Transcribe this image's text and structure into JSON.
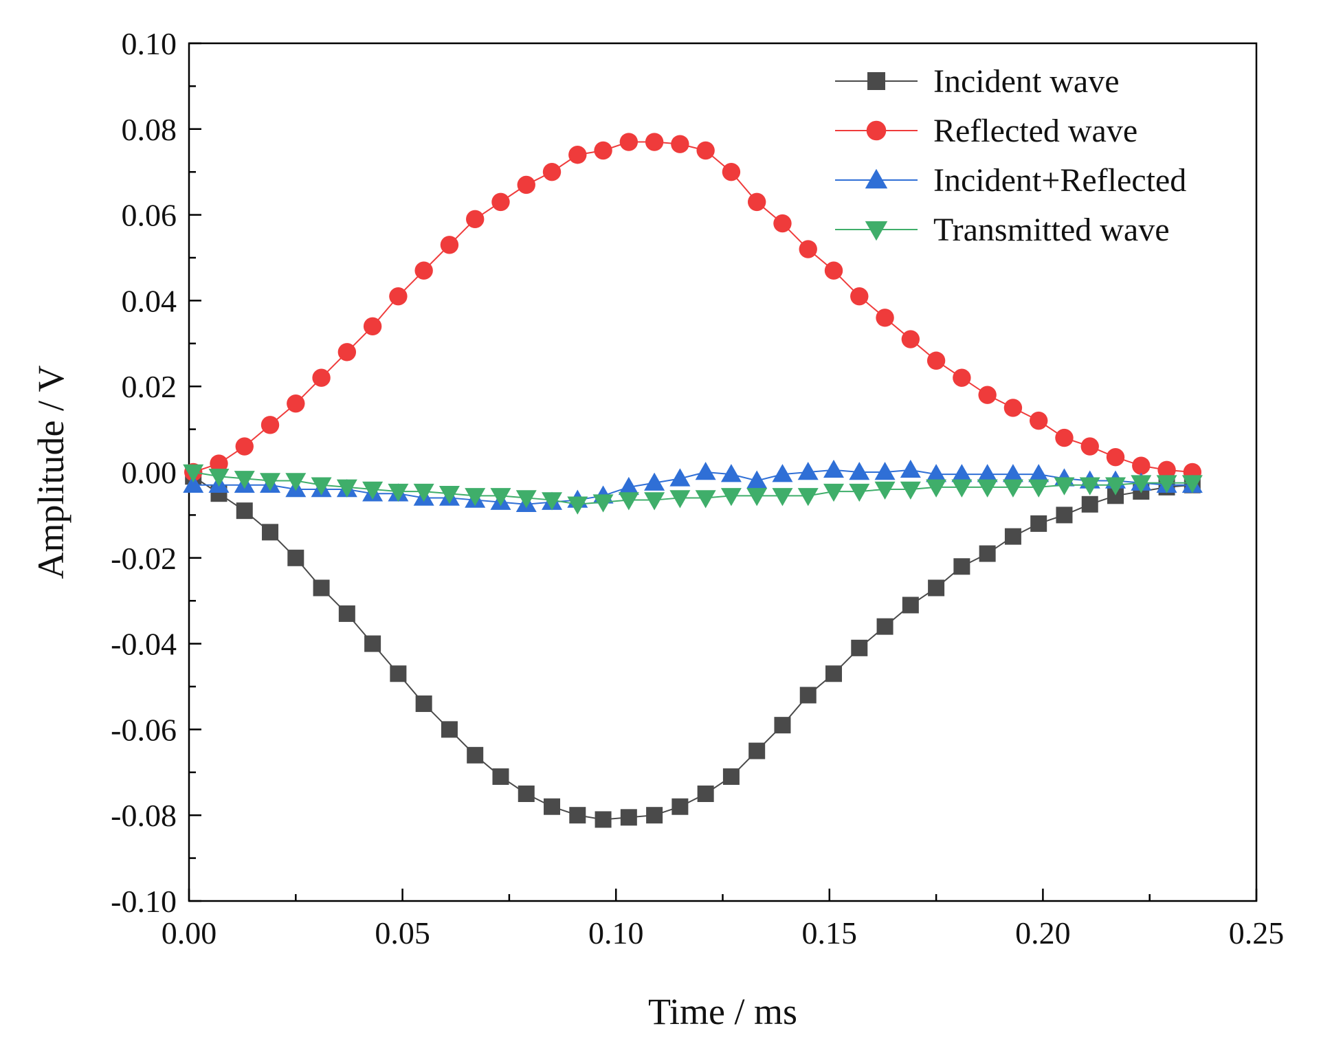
{
  "chart_data": {
    "type": "line",
    "title": "",
    "xlabel": "Time /  ms",
    "ylabel": "Amplitude / V",
    "xlim": [
      0,
      0.25
    ],
    "ylim": [
      -0.1,
      0.1
    ],
    "xticks": [
      0.0,
      0.05,
      0.1,
      0.15,
      0.2,
      0.25
    ],
    "xtick_labels": [
      "0.00",
      "0.05",
      "0.10",
      "0.15",
      "0.20",
      "0.25"
    ],
    "yticks": [
      -0.1,
      -0.08,
      -0.06,
      -0.04,
      -0.02,
      0.0,
      0.02,
      0.04,
      0.06,
      0.08,
      0.1
    ],
    "ytick_labels": [
      "-0.10",
      "-0.08",
      "-0.06",
      "-0.04",
      "-0.02",
      "0.00",
      "0.02",
      "0.04",
      "0.06",
      "0.08",
      "0.10"
    ],
    "grid": false,
    "legend_position": "top-right",
    "x": [
      0.001,
      0.007,
      0.013,
      0.019,
      0.025,
      0.031,
      0.037,
      0.043,
      0.049,
      0.055,
      0.061,
      0.067,
      0.073,
      0.079,
      0.085,
      0.091,
      0.097,
      0.103,
      0.109,
      0.115,
      0.121,
      0.127,
      0.133,
      0.139,
      0.145,
      0.151,
      0.157,
      0.163,
      0.169,
      0.175,
      0.181,
      0.187,
      0.193,
      0.199,
      0.205,
      0.211,
      0.217,
      0.223,
      0.229,
      0.235
    ],
    "series": [
      {
        "name": "Incident wave",
        "color": "#4a4a4a",
        "marker": "square",
        "values": [
          -0.001,
          -0.005,
          -0.009,
          -0.014,
          -0.02,
          -0.027,
          -0.033,
          -0.04,
          -0.047,
          -0.054,
          -0.06,
          -0.066,
          -0.071,
          -0.075,
          -0.078,
          -0.08,
          -0.081,
          -0.0805,
          -0.08,
          -0.078,
          -0.075,
          -0.071,
          -0.065,
          -0.059,
          -0.052,
          -0.047,
          -0.041,
          -0.036,
          -0.031,
          -0.027,
          -0.022,
          -0.019,
          -0.015,
          -0.012,
          -0.01,
          -0.0075,
          -0.0055,
          -0.0045,
          -0.0035,
          -0.003
        ]
      },
      {
        "name": "Reflected wave",
        "color": "#ef3b3b",
        "marker": "circle",
        "values": [
          0.0,
          0.002,
          0.006,
          0.011,
          0.016,
          0.022,
          0.028,
          0.034,
          0.041,
          0.047,
          0.053,
          0.059,
          0.063,
          0.067,
          0.07,
          0.074,
          0.075,
          0.077,
          0.077,
          0.0765,
          0.075,
          0.07,
          0.063,
          0.058,
          0.052,
          0.047,
          0.041,
          0.036,
          0.031,
          0.026,
          0.022,
          0.018,
          0.015,
          0.012,
          0.008,
          0.006,
          0.0035,
          0.0015,
          0.0005,
          0.0
        ]
      },
      {
        "name": "Incident+Reflected",
        "color": "#2f6fd6",
        "marker": "triangle-up",
        "values": [
          -0.003,
          -0.003,
          -0.003,
          -0.003,
          -0.004,
          -0.004,
          -0.004,
          -0.005,
          -0.005,
          -0.006,
          -0.006,
          -0.0065,
          -0.007,
          -0.0075,
          -0.007,
          -0.0065,
          -0.0055,
          -0.0035,
          -0.0025,
          -0.0015,
          0.0,
          -0.0005,
          -0.002,
          -0.0005,
          0.0,
          0.0005,
          0.0,
          0.0,
          0.0005,
          -0.0005,
          -0.0005,
          -0.0005,
          -0.0005,
          -0.0005,
          -0.0015,
          -0.002,
          -0.002,
          -0.0025,
          -0.003,
          -0.003
        ]
      },
      {
        "name": "Transmitted wave",
        "color": "#3fae6a",
        "marker": "triangle-down",
        "values": [
          0.0,
          -0.001,
          -0.0015,
          -0.002,
          -0.002,
          -0.003,
          -0.0035,
          -0.004,
          -0.0045,
          -0.0045,
          -0.005,
          -0.0055,
          -0.0055,
          -0.006,
          -0.0065,
          -0.0075,
          -0.007,
          -0.0065,
          -0.0065,
          -0.006,
          -0.006,
          -0.0055,
          -0.0055,
          -0.0055,
          -0.0055,
          -0.0045,
          -0.0045,
          -0.004,
          -0.004,
          -0.0035,
          -0.0035,
          -0.0035,
          -0.0035,
          -0.0035,
          -0.003,
          -0.003,
          -0.003,
          -0.0025,
          -0.0025,
          -0.0025
        ]
      }
    ]
  }
}
